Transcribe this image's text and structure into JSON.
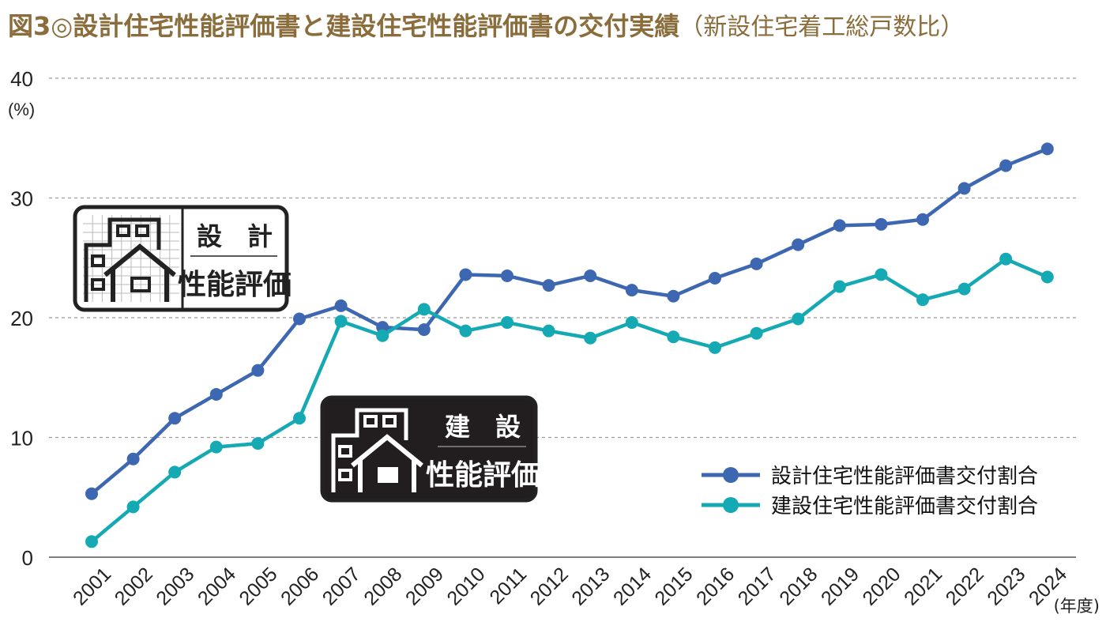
{
  "title": "図3◎設計住宅性能評価書と建設住宅性能評価書の交付実績",
  "subtitle": "（新設住宅着工総戸数比）",
  "colors": {
    "series1": "#3e67b1",
    "series2": "#15a9b4",
    "title": "#8a6d3b"
  },
  "logos": {
    "design": {
      "top": "設　計",
      "bottom": "性能評価"
    },
    "construction": {
      "top": "建　設",
      "bottom": "性能評価"
    }
  },
  "chart_data": {
    "type": "line",
    "x": [
      "2001",
      "2002",
      "2003",
      "2004",
      "2005",
      "2006",
      "2007",
      "2008",
      "2009",
      "2010",
      "2011",
      "2012",
      "2013",
      "2014",
      "2015",
      "2016",
      "2017",
      "2018",
      "2019",
      "2020",
      "2021",
      "2022",
      "2023",
      "2024"
    ],
    "series": [
      {
        "name": "設計住宅性能評価書交付割合",
        "values": [
          5.3,
          8.2,
          11.6,
          13.6,
          15.6,
          19.9,
          21.0,
          19.2,
          19.0,
          23.6,
          23.5,
          22.7,
          23.5,
          22.3,
          21.8,
          23.3,
          24.5,
          26.1,
          27.7,
          27.8,
          28.2,
          30.8,
          32.7,
          34.1
        ]
      },
      {
        "name": "建設住宅性能評価書交付割合",
        "values": [
          1.3,
          4.2,
          7.1,
          9.2,
          9.5,
          11.6,
          19.7,
          18.5,
          20.7,
          18.9,
          19.6,
          18.9,
          18.3,
          19.6,
          18.4,
          17.5,
          18.7,
          19.9,
          22.6,
          23.6,
          21.5,
          22.4,
          24.9,
          23.4
        ]
      }
    ],
    "ylim": [
      0,
      40
    ],
    "yticks": [
      "0",
      "10",
      "20",
      "30",
      "40"
    ],
    "ylabel": "(%)",
    "xlabel": "(年度)",
    "grid": true,
    "legend_position": "bottom-right"
  }
}
